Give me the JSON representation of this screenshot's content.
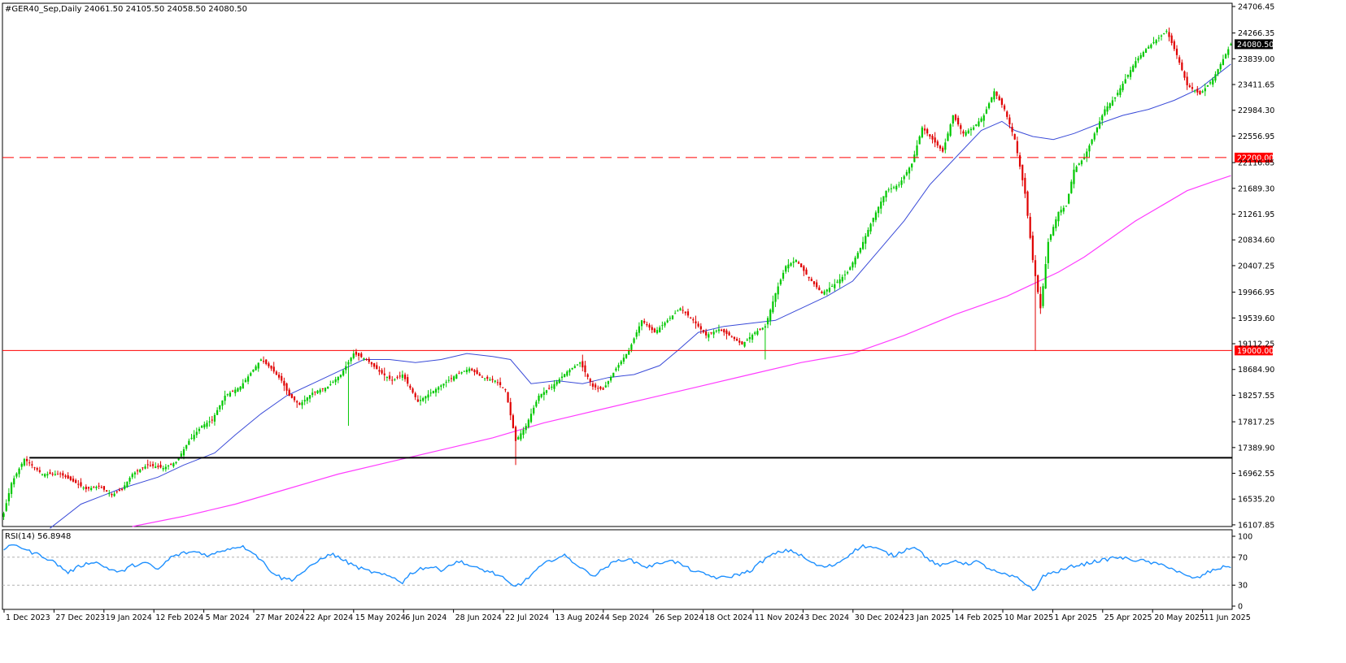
{
  "window": {
    "header": "#GER40_Sep,Daily  24061.50 24105.50 24058.50 24080.50"
  },
  "colors": {
    "bull": "#00c800",
    "bear": "#e00000",
    "ma_short": "#3a4bd8",
    "ma_long": "#ff3cff",
    "rsi_line": "#1e90ff",
    "level_red": "#ff0000",
    "price_tag_bg": "#000000",
    "level_tag_bg": "#ff0000"
  },
  "chart_data": [
    {
      "type": "candlestick",
      "title": "#GER40_Sep,Daily",
      "ohlc_last": {
        "open": 24061.5,
        "high": 24105.5,
        "low": 24058.5,
        "close": 24080.5
      },
      "y_ticks": [
        "24706.45",
        "24266.35",
        "23839.00",
        "23411.65",
        "22984.30",
        "22556.95",
        "22116.85",
        "21689.30",
        "21261.95",
        "20834.60",
        "20407.25",
        "19966.95",
        "19539.60",
        "19112.25",
        "18684.90",
        "18257.55",
        "17817.25",
        "17389.90",
        "16962.55",
        "16535.20",
        "16107.85"
      ],
      "ylim": [
        16080,
        24760
      ],
      "x_labels": [
        "1 Dec 2023",
        "27 Dec 2023",
        "19 Jan 2024",
        "12 Feb 2024",
        "5 Mar 2024",
        "27 Mar 2024",
        "22 Apr 2024",
        "15 May 2024",
        "6 Jun 2024",
        "28 Jun 2024",
        "22 Jul 2024",
        "13 Aug 2024",
        "4 Sep 2024",
        "26 Sep 2024",
        "18 Oct 2024",
        "11 Nov 2024",
        "3 Dec 2024",
        "30 Dec 2024",
        "23 Jan 2025",
        "14 Feb 2025",
        "10 Mar 2025",
        "1 Apr 2025",
        "25 Apr 2025",
        "20 May 2025",
        "11 Jun 2025"
      ],
      "current_price_label": "24080.50",
      "levels": [
        {
          "value": 22200,
          "label": "22200.00",
          "style": "dashed",
          "color": "#ff0000"
        },
        {
          "value": 19000,
          "label": "19000.00",
          "style": "solid",
          "color": "#ff0000"
        },
        {
          "value": 17220,
          "style": "solid",
          "color": "#000000"
        }
      ],
      "close_series_anchors": [
        [
          0,
          16300
        ],
        [
          3,
          16800
        ],
        [
          8,
          17200
        ],
        [
          15,
          16950
        ],
        [
          22,
          16950
        ],
        [
          28,
          16800
        ],
        [
          32,
          16700
        ],
        [
          37,
          16750
        ],
        [
          42,
          16600
        ],
        [
          46,
          16700
        ],
        [
          50,
          16950
        ],
        [
          56,
          17100
        ],
        [
          62,
          17050
        ],
        [
          67,
          17150
        ],
        [
          72,
          17500
        ],
        [
          77,
          17750
        ],
        [
          81,
          17850
        ],
        [
          86,
          18250
        ],
        [
          92,
          18400
        ],
        [
          100,
          18850
        ],
        [
          104,
          18700
        ],
        [
          108,
          18500
        ],
        [
          111,
          18250
        ],
        [
          115,
          18100
        ],
        [
          120,
          18300
        ],
        [
          126,
          18400
        ],
        [
          131,
          18600
        ],
        [
          136,
          18950
        ],
        [
          141,
          18850
        ],
        [
          146,
          18650
        ],
        [
          151,
          18500
        ],
        [
          155,
          18600
        ],
        [
          161,
          18150
        ],
        [
          166,
          18300
        ],
        [
          171,
          18450
        ],
        [
          176,
          18600
        ],
        [
          181,
          18700
        ],
        [
          186,
          18550
        ],
        [
          191,
          18500
        ],
        [
          195,
          18350
        ],
        [
          199,
          17500
        ],
        [
          203,
          17750
        ],
        [
          208,
          18250
        ],
        [
          213,
          18400
        ],
        [
          219,
          18650
        ],
        [
          224,
          18800
        ],
        [
          229,
          18400
        ],
        [
          233,
          18350
        ],
        [
          238,
          18700
        ],
        [
          243,
          19000
        ],
        [
          248,
          19500
        ],
        [
          253,
          19300
        ],
        [
          258,
          19500
        ],
        [
          263,
          19700
        ],
        [
          268,
          19500
        ],
        [
          273,
          19250
        ],
        [
          278,
          19350
        ],
        [
          282,
          19250
        ],
        [
          287,
          19100
        ],
        [
          292,
          19300
        ],
        [
          296,
          19400
        ],
        [
          300,
          19950
        ],
        [
          304,
          20400
        ],
        [
          308,
          20500
        ],
        [
          313,
          20200
        ],
        [
          318,
          19950
        ],
        [
          323,
          20100
        ],
        [
          328,
          20300
        ],
        [
          333,
          20700
        ],
        [
          338,
          21200
        ],
        [
          343,
          21650
        ],
        [
          348,
          21750
        ],
        [
          353,
          22100
        ],
        [
          357,
          22700
        ],
        [
          361,
          22500
        ],
        [
          365,
          22300
        ],
        [
          369,
          22900
        ],
        [
          373,
          22600
        ],
        [
          377,
          22700
        ],
        [
          381,
          22900
        ],
        [
          385,
          23300
        ],
        [
          389,
          23000
        ],
        [
          393,
          22500
        ],
        [
          397,
          21600
        ],
        [
          400,
          20500
        ],
        [
          403,
          19700
        ],
        [
          406,
          20800
        ],
        [
          410,
          21300
        ],
        [
          413,
          21400
        ],
        [
          416,
          22000
        ],
        [
          420,
          22200
        ],
        [
          424,
          22600
        ],
        [
          428,
          23000
        ],
        [
          432,
          23200
        ],
        [
          436,
          23500
        ],
        [
          440,
          23800
        ],
        [
          444,
          24000
        ],
        [
          448,
          24150
        ],
        [
          452,
          24300
        ],
        [
          456,
          23900
        ],
        [
          460,
          23400
        ],
        [
          465,
          23250
        ],
        [
          470,
          23500
        ],
        [
          473,
          23750
        ],
        [
          477,
          24080
        ]
      ],
      "ma_short_anchors": [
        [
          18,
          16050
        ],
        [
          30,
          16450
        ],
        [
          45,
          16700
        ],
        [
          60,
          16900
        ],
        [
          70,
          17100
        ],
        [
          82,
          17300
        ],
        [
          90,
          17600
        ],
        [
          100,
          17950
        ],
        [
          110,
          18250
        ],
        [
          120,
          18450
        ],
        [
          130,
          18650
        ],
        [
          140,
          18850
        ],
        [
          150,
          18850
        ],
        [
          160,
          18800
        ],
        [
          170,
          18850
        ],
        [
          180,
          18950
        ],
        [
          190,
          18900
        ],
        [
          197,
          18850
        ],
        [
          205,
          18450
        ],
        [
          215,
          18500
        ],
        [
          225,
          18450
        ],
        [
          235,
          18550
        ],
        [
          245,
          18600
        ],
        [
          255,
          18750
        ],
        [
          262,
          19000
        ],
        [
          270,
          19300
        ],
        [
          280,
          19400
        ],
        [
          290,
          19450
        ],
        [
          300,
          19500
        ],
        [
          310,
          19700
        ],
        [
          320,
          19900
        ],
        [
          330,
          20150
        ],
        [
          340,
          20650
        ],
        [
          350,
          21150
        ],
        [
          360,
          21750
        ],
        [
          370,
          22200
        ],
        [
          380,
          22650
        ],
        [
          388,
          22800
        ],
        [
          393,
          22650
        ],
        [
          400,
          22550
        ],
        [
          408,
          22500
        ],
        [
          416,
          22600
        ],
        [
          425,
          22750
        ],
        [
          435,
          22900
        ],
        [
          445,
          23000
        ],
        [
          455,
          23150
        ],
        [
          465,
          23350
        ],
        [
          471,
          23550
        ],
        [
          477,
          23750
        ]
      ],
      "ma_long_anchors": [
        [
          50,
          16080
        ],
        [
          70,
          16250
        ],
        [
          90,
          16450
        ],
        [
          110,
          16700
        ],
        [
          130,
          16950
        ],
        [
          150,
          17150
        ],
        [
          170,
          17350
        ],
        [
          190,
          17550
        ],
        [
          210,
          17800
        ],
        [
          230,
          18000
        ],
        [
          250,
          18200
        ],
        [
          270,
          18400
        ],
        [
          290,
          18600
        ],
        [
          310,
          18800
        ],
        [
          330,
          18950
        ],
        [
          350,
          19250
        ],
        [
          370,
          19600
        ],
        [
          390,
          19900
        ],
        [
          400,
          20100
        ],
        [
          410,
          20300
        ],
        [
          420,
          20550
        ],
        [
          430,
          20850
        ],
        [
          440,
          21150
        ],
        [
          450,
          21400
        ],
        [
          460,
          21650
        ],
        [
          470,
          21800
        ],
        [
          477,
          21900
        ]
      ]
    },
    {
      "type": "line",
      "title": "RSI(14) 56.8948",
      "series_name": "RSI(14)",
      "last_value": 56.8948,
      "y_ticks": [
        "100",
        "70",
        "30",
        "0"
      ],
      "ylim": [
        0,
        100
      ],
      "guide_levels": [
        70,
        30
      ],
      "anchors": [
        [
          0,
          82
        ],
        [
          5,
          88
        ],
        [
          10,
          78
        ],
        [
          15,
          72
        ],
        [
          20,
          62
        ],
        [
          25,
          48
        ],
        [
          30,
          58
        ],
        [
          35,
          64
        ],
        [
          40,
          55
        ],
        [
          45,
          48
        ],
        [
          50,
          58
        ],
        [
          55,
          62
        ],
        [
          60,
          52
        ],
        [
          65,
          70
        ],
        [
          70,
          76
        ],
        [
          75,
          78
        ],
        [
          80,
          72
        ],
        [
          85,
          80
        ],
        [
          92,
          86
        ],
        [
          96,
          80
        ],
        [
          100,
          66
        ],
        [
          104,
          50
        ],
        [
          108,
          40
        ],
        [
          112,
          38
        ],
        [
          116,
          48
        ],
        [
          120,
          58
        ],
        [
          124,
          70
        ],
        [
          128,
          74
        ],
        [
          132,
          66
        ],
        [
          136,
          58
        ],
        [
          140,
          52
        ],
        [
          144,
          48
        ],
        [
          148,
          44
        ],
        [
          152,
          40
        ],
        [
          155,
          34
        ],
        [
          158,
          46
        ],
        [
          162,
          54
        ],
        [
          166,
          56
        ],
        [
          170,
          52
        ],
        [
          174,
          60
        ],
        [
          178,
          64
        ],
        [
          182,
          56
        ],
        [
          186,
          52
        ],
        [
          190,
          48
        ],
        [
          194,
          40
        ],
        [
          198,
          28
        ],
        [
          202,
          34
        ],
        [
          206,
          48
        ],
        [
          210,
          60
        ],
        [
          214,
          68
        ],
        [
          218,
          72
        ],
        [
          222,
          62
        ],
        [
          226,
          50
        ],
        [
          230,
          44
        ],
        [
          234,
          56
        ],
        [
          238,
          64
        ],
        [
          242,
          68
        ],
        [
          246,
          62
        ],
        [
          250,
          56
        ],
        [
          254,
          60
        ],
        [
          258,
          66
        ],
        [
          262,
          62
        ],
        [
          266,
          54
        ],
        [
          270,
          48
        ],
        [
          274,
          44
        ],
        [
          278,
          40
        ],
        [
          282,
          42
        ],
        [
          286,
          46
        ],
        [
          290,
          50
        ],
        [
          294,
          62
        ],
        [
          298,
          72
        ],
        [
          302,
          78
        ],
        [
          306,
          80
        ],
        [
          310,
          72
        ],
        [
          314,
          62
        ],
        [
          318,
          56
        ],
        [
          322,
          58
        ],
        [
          326,
          66
        ],
        [
          330,
          78
        ],
        [
          334,
          86
        ],
        [
          338,
          84
        ],
        [
          342,
          78
        ],
        [
          346,
          72
        ],
        [
          350,
          80
        ],
        [
          354,
          86
        ],
        [
          358,
          72
        ],
        [
          362,
          60
        ],
        [
          366,
          58
        ],
        [
          370,
          66
        ],
        [
          374,
          60
        ],
        [
          378,
          64
        ],
        [
          382,
          56
        ],
        [
          386,
          48
        ],
        [
          390,
          44
        ],
        [
          394,
          40
        ],
        [
          398,
          30
        ],
        [
          401,
          22
        ],
        [
          404,
          44
        ],
        [
          408,
          48
        ],
        [
          412,
          52
        ],
        [
          416,
          58
        ],
        [
          420,
          60
        ],
        [
          424,
          64
        ],
        [
          428,
          66
        ],
        [
          432,
          70
        ],
        [
          436,
          68
        ],
        [
          440,
          66
        ],
        [
          444,
          64
        ],
        [
          448,
          60
        ],
        [
          452,
          58
        ],
        [
          456,
          50
        ],
        [
          460,
          42
        ],
        [
          464,
          40
        ],
        [
          468,
          48
        ],
        [
          472,
          54
        ],
        [
          476,
          57
        ]
      ]
    }
  ]
}
